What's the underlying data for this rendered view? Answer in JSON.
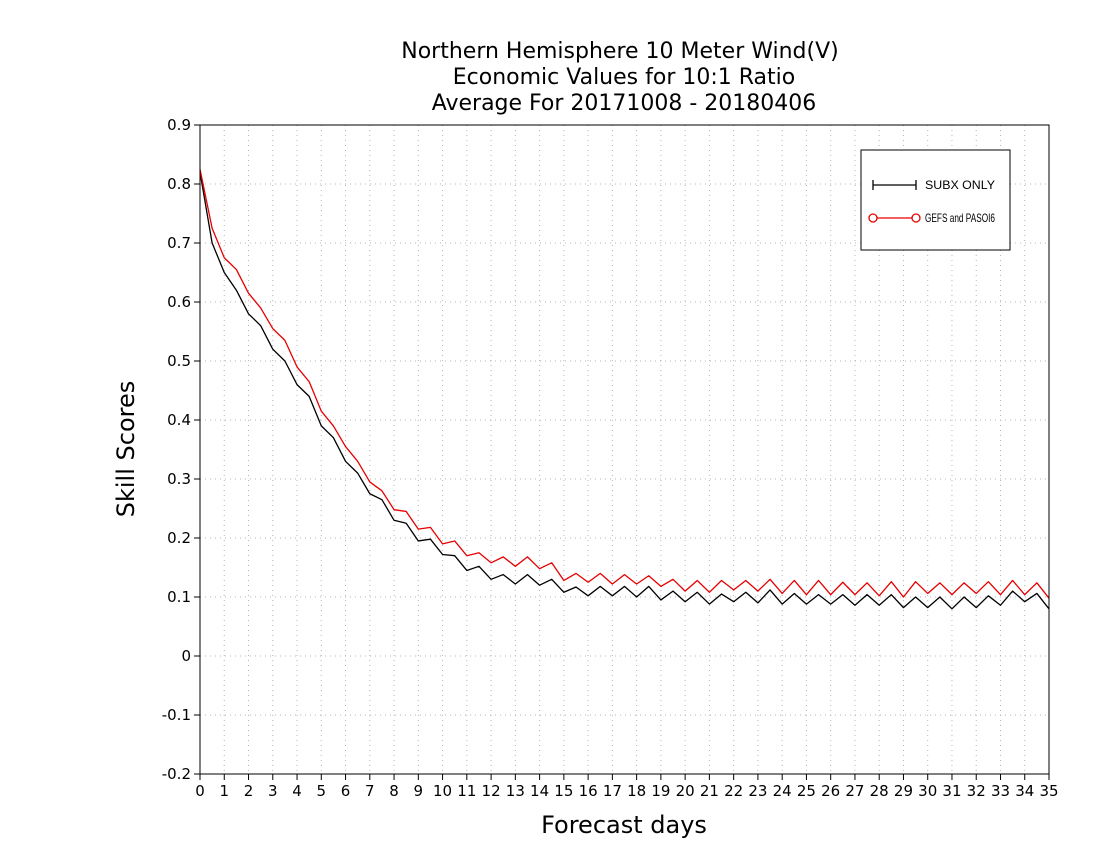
{
  "chart_data": {
    "type": "line",
    "title_lines": [
      "Northern Hemisphere 10 Meter Wind(V)",
      "Economic Values for 10:1 Ratio",
      "Average For 20171008 - 20180406"
    ],
    "xlabel": "Forecast days",
    "ylabel": "Skill Scores",
    "xlim": [
      0,
      35
    ],
    "ylim": [
      -0.2,
      0.9
    ],
    "x_ticks": [
      0,
      1,
      2,
      3,
      4,
      5,
      6,
      7,
      8,
      9,
      10,
      11,
      12,
      13,
      14,
      15,
      16,
      17,
      18,
      19,
      20,
      21,
      22,
      23,
      24,
      25,
      26,
      27,
      28,
      29,
      30,
      31,
      32,
      33,
      34,
      35
    ],
    "y_ticks": [
      -0.2,
      -0.1,
      0,
      0.1,
      0.2,
      0.3,
      0.4,
      0.5,
      0.6,
      0.7,
      0.8,
      0.9
    ],
    "y_tick_labels": [
      "-0.2",
      "-0.1",
      "0",
      "0.1",
      "0.2",
      "0.3",
      "0.4",
      "0.5",
      "0.6",
      "0.7",
      "0.8",
      "0.9"
    ],
    "grid": true,
    "legend_position": "top-right",
    "x": [
      0,
      0.5,
      1,
      1.5,
      2,
      2.5,
      3,
      3.5,
      4,
      4.5,
      5,
      5.5,
      6,
      6.5,
      7,
      7.5,
      8,
      8.5,
      9,
      9.5,
      10,
      10.5,
      11,
      11.5,
      12,
      12.5,
      13,
      13.5,
      14,
      14.5,
      15,
      15.5,
      16,
      16.5,
      17,
      17.5,
      18,
      18.5,
      19,
      19.5,
      20,
      20.5,
      21,
      21.5,
      22,
      22.5,
      23,
      23.5,
      24,
      24.5,
      25,
      25.5,
      26,
      26.5,
      27,
      27.5,
      28,
      28.5,
      29,
      29.5,
      30,
      30.5,
      31,
      31.5,
      32,
      32.5,
      33,
      33.5,
      34,
      34.5,
      35
    ],
    "series": [
      {
        "name": "SUBX ONLY",
        "color": "#000000",
        "marker": "plus",
        "values": [
          0.82,
          0.7,
          0.65,
          0.62,
          0.58,
          0.56,
          0.52,
          0.5,
          0.46,
          0.44,
          0.39,
          0.37,
          0.33,
          0.31,
          0.275,
          0.265,
          0.23,
          0.225,
          0.195,
          0.198,
          0.172,
          0.17,
          0.145,
          0.152,
          0.13,
          0.138,
          0.122,
          0.138,
          0.12,
          0.13,
          0.108,
          0.117,
          0.102,
          0.118,
          0.102,
          0.118,
          0.1,
          0.118,
          0.095,
          0.11,
          0.092,
          0.108,
          0.088,
          0.105,
          0.092,
          0.108,
          0.09,
          0.112,
          0.088,
          0.106,
          0.088,
          0.104,
          0.088,
          0.104,
          0.086,
          0.104,
          0.086,
          0.104,
          0.082,
          0.1,
          0.082,
          0.1,
          0.08,
          0.1,
          0.082,
          0.102,
          0.086,
          0.11,
          0.092,
          0.106,
          0.08
        ]
      },
      {
        "name": "GEFS and PASOI6",
        "color": "#e60000",
        "marker": "circle",
        "values": [
          0.825,
          0.725,
          0.675,
          0.655,
          0.615,
          0.59,
          0.555,
          0.535,
          0.49,
          0.465,
          0.415,
          0.39,
          0.355,
          0.33,
          0.295,
          0.28,
          0.248,
          0.245,
          0.215,
          0.218,
          0.19,
          0.195,
          0.17,
          0.175,
          0.158,
          0.168,
          0.152,
          0.168,
          0.148,
          0.158,
          0.128,
          0.14,
          0.125,
          0.14,
          0.122,
          0.138,
          0.122,
          0.136,
          0.118,
          0.13,
          0.11,
          0.128,
          0.108,
          0.128,
          0.112,
          0.128,
          0.11,
          0.13,
          0.106,
          0.128,
          0.104,
          0.128,
          0.104,
          0.125,
          0.104,
          0.124,
          0.102,
          0.126,
          0.1,
          0.126,
          0.106,
          0.124,
          0.104,
          0.124,
          0.106,
          0.126,
          0.104,
          0.128,
          0.104,
          0.124,
          0.098
        ]
      }
    ]
  }
}
